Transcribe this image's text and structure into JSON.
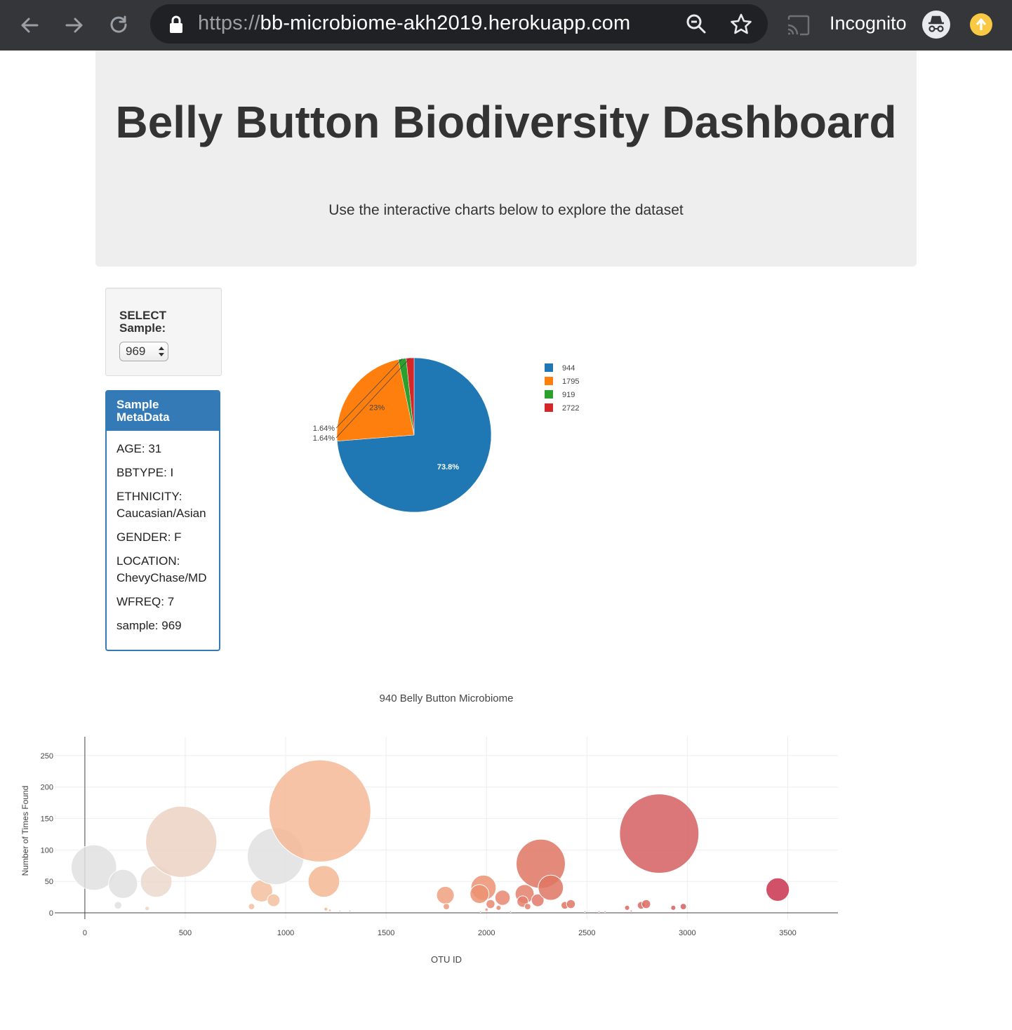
{
  "browser": {
    "url_scheme": "https://",
    "url_host": "bb-microbiome-akh2019.herokuapp.com",
    "incognito_label": "Incognito",
    "colors": {
      "toolbar": "#35363a",
      "omnibox": "#202124",
      "update_badge": "#f9c943"
    }
  },
  "header": {
    "title": "Belly Button Biodiversity Dashboard",
    "subtitle": "Use the interactive charts below to explore the dataset"
  },
  "selector": {
    "label": "SELECT Sample:",
    "selected": "969"
  },
  "metadata_panel": {
    "title": "Sample MetaData",
    "items": [
      "AGE: 31",
      "BBTYPE: I",
      "ETHNICITY: Caucasian/Asian",
      "GENDER: F",
      "LOCATION: ChevyChase/MD",
      "WFREQ: 7",
      "sample: 969"
    ]
  },
  "chart_data": [
    {
      "type": "pie",
      "labels": [
        "944",
        "1795",
        "919",
        "2722"
      ],
      "percent_labels": [
        "73.8%",
        "23%",
        "1.64%",
        "1.64%"
      ],
      "values": [
        73.8,
        23,
        1.64,
        1.64
      ],
      "colors": [
        "#1f77b4",
        "#ff7f0e",
        "#2ca02c",
        "#d62728"
      ],
      "legend_position": "right"
    },
    {
      "type": "scatter",
      "title": "940 Belly Button Microbiome",
      "xlabel": "OTU ID",
      "ylabel": "Number of Times Found",
      "xlim": [
        -150,
        3750
      ],
      "ylim": [
        -10,
        280
      ],
      "xticks": [
        0,
        500,
        1000,
        1500,
        2000,
        2500,
        3000,
        3500
      ],
      "yticks": [
        0,
        50,
        100,
        150,
        200,
        250
      ],
      "grid": true,
      "points": [
        {
          "x": 45,
          "y": 72,
          "size": 72,
          "color": "#e0e0e0"
        },
        {
          "x": 190,
          "y": 46,
          "size": 46,
          "color": "#e0e0e0"
        },
        {
          "x": 165,
          "y": 12,
          "size": 12,
          "color": "#e0e0e0"
        },
        {
          "x": 310,
          "y": 7,
          "size": 7,
          "color": "#f0d2c0"
        },
        {
          "x": 355,
          "y": 50,
          "size": 50,
          "color": "#ebd8cc"
        },
        {
          "x": 480,
          "y": 113,
          "size": 113,
          "color": "#ebd2c3"
        },
        {
          "x": 830,
          "y": 10,
          "size": 10,
          "color": "#f3c0a0"
        },
        {
          "x": 880,
          "y": 35,
          "size": 35,
          "color": "#f3c0a0"
        },
        {
          "x": 940,
          "y": 20,
          "size": 20,
          "color": "#f3c0a0"
        },
        {
          "x": 950,
          "y": 90,
          "size": 90,
          "color": "#e0e0e0"
        },
        {
          "x": 1170,
          "y": 162,
          "size": 162,
          "color": "#f4b896"
        },
        {
          "x": 1190,
          "y": 50,
          "size": 50,
          "color": "#f3b894"
        },
        {
          "x": 1200,
          "y": 6,
          "size": 6,
          "color": "#f3b894"
        },
        {
          "x": 1220,
          "y": 4,
          "size": 4,
          "color": "#f3b894"
        },
        {
          "x": 1270,
          "y": 3,
          "size": 3,
          "color": "#f3b894"
        },
        {
          "x": 1320,
          "y": 3,
          "size": 3,
          "color": "#f3b894"
        },
        {
          "x": 1795,
          "y": 28,
          "size": 28,
          "color": "#f0a080"
        },
        {
          "x": 1800,
          "y": 10,
          "size": 10,
          "color": "#ec9a7c"
        },
        {
          "x": 1970,
          "y": 2,
          "size": 2,
          "color": "#ec9a7c"
        },
        {
          "x": 1985,
          "y": 40,
          "size": 40,
          "color": "#ec9272"
        },
        {
          "x": 1965,
          "y": 30,
          "size": 30,
          "color": "#ec9272"
        },
        {
          "x": 2000,
          "y": 5,
          "size": 5,
          "color": "#ec9272"
        },
        {
          "x": 2020,
          "y": 14,
          "size": 14,
          "color": "#e88670"
        },
        {
          "x": 2060,
          "y": 8,
          "size": 8,
          "color": "#e88670"
        },
        {
          "x": 2080,
          "y": 24,
          "size": 24,
          "color": "#e88670"
        },
        {
          "x": 2120,
          "y": 2,
          "size": 2,
          "color": "#e88670"
        },
        {
          "x": 2190,
          "y": 30,
          "size": 30,
          "color": "#e47f6c"
        },
        {
          "x": 2180,
          "y": 18,
          "size": 18,
          "color": "#e47f6c"
        },
        {
          "x": 2205,
          "y": 10,
          "size": 10,
          "color": "#e47f6c"
        },
        {
          "x": 2255,
          "y": 20,
          "size": 20,
          "color": "#e2786a"
        },
        {
          "x": 2270,
          "y": 78,
          "size": 78,
          "color": "#df7563"
        },
        {
          "x": 2320,
          "y": 40,
          "size": 40,
          "color": "#df7563"
        },
        {
          "x": 2390,
          "y": 12,
          "size": 12,
          "color": "#df7563"
        },
        {
          "x": 2420,
          "y": 14,
          "size": 14,
          "color": "#df7563"
        },
        {
          "x": 2490,
          "y": 2,
          "size": 2,
          "color": "#df7563"
        },
        {
          "x": 2560,
          "y": 2,
          "size": 2,
          "color": "#df7563"
        },
        {
          "x": 2590,
          "y": 2,
          "size": 2,
          "color": "#df7563"
        },
        {
          "x": 2700,
          "y": 8,
          "size": 8,
          "color": "#db6a62"
        },
        {
          "x": 2720,
          "y": 3,
          "size": 3,
          "color": "#db6a62"
        },
        {
          "x": 2770,
          "y": 12,
          "size": 12,
          "color": "#db6a62"
        },
        {
          "x": 2795,
          "y": 14,
          "size": 14,
          "color": "#db6a62"
        },
        {
          "x": 2860,
          "y": 126,
          "size": 126,
          "color": "#d65f62"
        },
        {
          "x": 2930,
          "y": 8,
          "size": 8,
          "color": "#d65f62"
        },
        {
          "x": 2980,
          "y": 10,
          "size": 10,
          "color": "#d65f62"
        },
        {
          "x": 3450,
          "y": 37,
          "size": 37,
          "color": "#c9344e"
        }
      ]
    }
  ]
}
